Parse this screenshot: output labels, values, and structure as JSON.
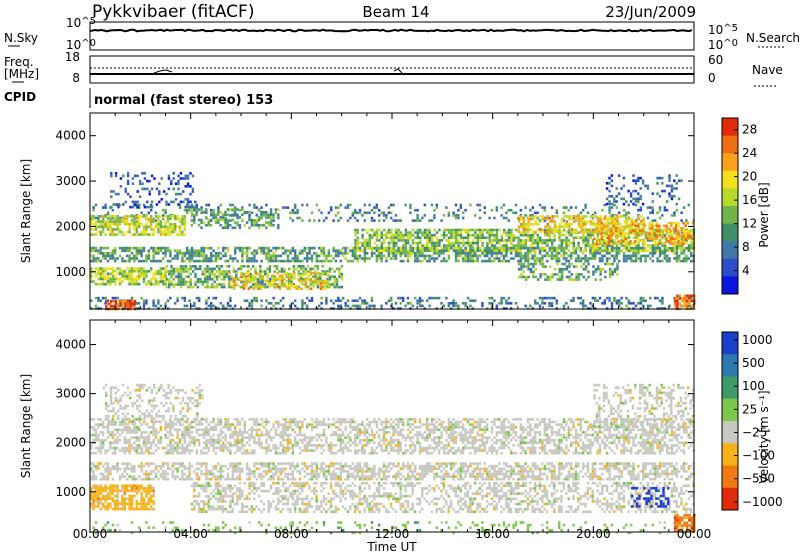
{
  "header": {
    "station": "Pykkvibaer (fitACF)",
    "beam": "Beam 14",
    "date": "23/Jun/2009"
  },
  "noise_panel": {
    "left_label": "N.Sky",
    "right_label": "N.Search",
    "left_ticks": [
      {
        "base": "10",
        "exp": "^5"
      },
      {
        "base": "10",
        "exp": "^0"
      }
    ],
    "right_ticks": [
      {
        "base": "10",
        "exp": "^5"
      },
      {
        "base": "10",
        "exp": "^0"
      }
    ]
  },
  "freq_panel": {
    "left_label_line1": "Freq.",
    "left_label_line2": "[MHz]",
    "right_label": "Nave",
    "left_ticks": [
      "18",
      "8"
    ],
    "right_ticks": [
      "60",
      "0"
    ]
  },
  "cpid_panel": {
    "label": "CPID",
    "text": "normal (fast stereo) 153"
  },
  "chart_data": [
    {
      "type": "heatmap",
      "name": "power",
      "title": "",
      "xlabel": "Time UT",
      "ylabel": "Slant Range [km]",
      "x_ticks": [
        "00:00",
        "04:00",
        "08:00",
        "12:00",
        "16:00",
        "20:00",
        "00:00"
      ],
      "y_ticks": [
        1000,
        2000,
        3000,
        4000
      ],
      "xlim_hours": [
        0,
        24
      ],
      "ylim": [
        180,
        4500
      ],
      "colorbar": {
        "label": "Power [dB]",
        "ticks": [
          4,
          8,
          12,
          16,
          20,
          24,
          28
        ],
        "range": [
          0,
          30
        ],
        "colors": [
          "#0a16e0",
          "#2b4ec8",
          "#3f78a8",
          "#3f8f6a",
          "#6fb548",
          "#b8d82a",
          "#f3e01a",
          "#f7a21a",
          "#f06e12",
          "#e02a0a"
        ]
      },
      "bands": [
        {
          "h0": 0,
          "h1": 24,
          "r0": 2100,
          "r1": 2500,
          "fill": 0.22,
          "value": 9
        },
        {
          "h0": 0,
          "h1": 3.8,
          "r0": 1800,
          "r1": 2250,
          "fill": 0.7,
          "value": 17
        },
        {
          "h0": 4,
          "h1": 7.5,
          "r0": 1950,
          "r1": 2400,
          "fill": 0.45,
          "value": 12
        },
        {
          "h0": 0,
          "h1": 24,
          "r0": 1250,
          "r1": 1550,
          "fill": 0.6,
          "value": 11
        },
        {
          "h0": 10.5,
          "h1": 24,
          "r0": 1480,
          "r1": 1950,
          "fill": 0.65,
          "value": 14
        },
        {
          "h0": 17,
          "h1": 22,
          "r0": 1850,
          "r1": 2250,
          "fill": 0.6,
          "value": 20
        },
        {
          "h0": 20,
          "h1": 24,
          "r0": 1600,
          "r1": 2100,
          "fill": 0.55,
          "value": 22
        },
        {
          "h0": 0,
          "h1": 3,
          "r0": 750,
          "r1": 1100,
          "fill": 0.75,
          "value": 16
        },
        {
          "h0": 3,
          "h1": 10,
          "r0": 650,
          "r1": 1150,
          "fill": 0.55,
          "value": 13
        },
        {
          "h0": 5.5,
          "h1": 9.5,
          "r0": 600,
          "r1": 1000,
          "fill": 0.5,
          "value": 20
        },
        {
          "h0": 17,
          "h1": 21,
          "r0": 800,
          "r1": 1200,
          "fill": 0.45,
          "value": 12
        },
        {
          "h0": 0,
          "h1": 24,
          "r0": 180,
          "r1": 450,
          "fill": 0.3,
          "value": 8
        },
        {
          "h0": 0.6,
          "h1": 1.8,
          "r0": 180,
          "r1": 380,
          "fill": 0.8,
          "value": 27
        },
        {
          "h0": 23.2,
          "h1": 24,
          "r0": 180,
          "r1": 500,
          "fill": 0.8,
          "value": 26
        },
        {
          "h0": 0.8,
          "h1": 4.2,
          "r0": 2450,
          "r1": 3200,
          "fill": 0.25,
          "value": 6
        },
        {
          "h0": 20.5,
          "h1": 23.5,
          "r0": 2500,
          "r1": 3150,
          "fill": 0.25,
          "value": 7
        }
      ]
    },
    {
      "type": "heatmap",
      "name": "velocity",
      "title": "",
      "xlabel": "Time UT",
      "ylabel": "Slant Range [km]",
      "x_ticks": [
        "00:00",
        "04:00",
        "08:00",
        "12:00",
        "16:00",
        "20:00",
        "00:00"
      ],
      "y_ticks": [
        1000,
        2000,
        3000,
        4000
      ],
      "xlim_hours": [
        0,
        24
      ],
      "ylim": [
        180,
        4500
      ],
      "colorbar": {
        "label": "Velocity [m s⁻¹]",
        "ticks": [
          "1000",
          "500",
          "100",
          "25",
          "−25",
          "−100",
          "−500",
          "−1000"
        ],
        "colors": [
          "#1a3fc8",
          "#2e78b0",
          "#3f9a6a",
          "#7cc84a",
          "#c8c8c0",
          "#f7b21a",
          "#f07a12",
          "#e02a0a"
        ]
      },
      "bands": [
        {
          "h0": 0,
          "h1": 24,
          "r0": 1800,
          "r1": 2500,
          "fill": 0.55,
          "cls": 4
        },
        {
          "h0": 0,
          "h1": 24,
          "r0": 1250,
          "r1": 1600,
          "fill": 0.6,
          "cls": 4
        },
        {
          "h0": 4,
          "h1": 24,
          "r0": 600,
          "r1": 1200,
          "fill": 0.45,
          "cls": 4
        },
        {
          "h0": 0,
          "h1": 2.5,
          "r0": 650,
          "r1": 1150,
          "fill": 0.7,
          "cls": 5
        },
        {
          "h0": 0.5,
          "h1": 4.5,
          "r0": 2400,
          "r1": 3200,
          "fill": 0.35,
          "cls": 4
        },
        {
          "h0": 20,
          "h1": 24,
          "r0": 2300,
          "r1": 3200,
          "fill": 0.3,
          "cls": 4
        },
        {
          "h0": 0,
          "h1": 24,
          "r0": 180,
          "r1": 400,
          "fill": 0.15,
          "cls": 3
        },
        {
          "h0": 21.5,
          "h1": 23,
          "r0": 700,
          "r1": 1100,
          "fill": 0.35,
          "cls": 0
        },
        {
          "h0": 23.2,
          "h1": 24,
          "r0": 180,
          "r1": 550,
          "fill": 0.85,
          "cls": 6
        }
      ]
    }
  ]
}
